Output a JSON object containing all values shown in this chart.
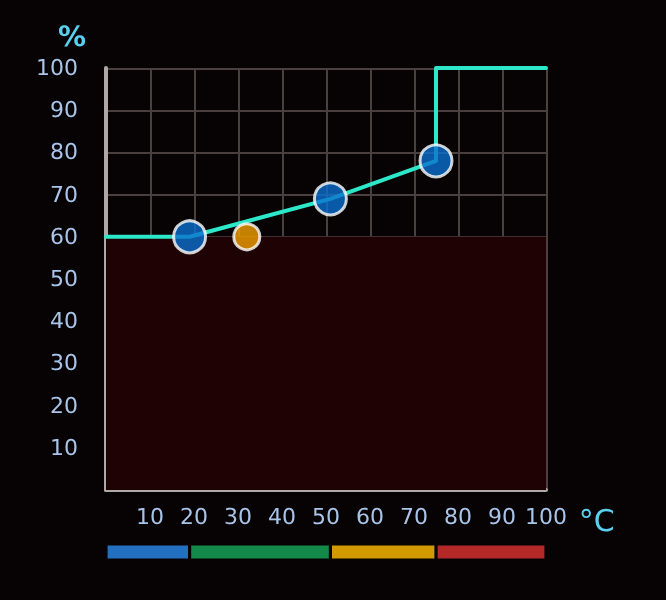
{
  "chart_data": [
    {
      "type": "line",
      "xlabel": "°C",
      "ylabel": "%",
      "series": [
        {
          "color": "#2de8c8",
          "x": [
            0,
            19,
            51,
            75,
            75,
            100
          ],
          "values": [
            60,
            60,
            69,
            78,
            100,
            100
          ],
          "marker": "none"
        },
        {
          "type": "scatter",
          "color": "#0a6fd0",
          "x": [
            19,
            51,
            75
          ],
          "values": [
            60,
            69,
            78
          ],
          "marker": "circle"
        },
        {
          "type": "scatter",
          "color": "#f4a000",
          "x": [
            32
          ],
          "values": [
            60
          ],
          "marker": "circle"
        }
      ],
      "xlim": [
        0,
        100
      ],
      "ylim": [
        0,
        100
      ],
      "xticks": [
        10,
        20,
        30,
        40,
        50,
        60,
        70,
        80,
        90,
        100
      ],
      "yticks": [
        10,
        20,
        30,
        40,
        50,
        60,
        70,
        80,
        90,
        100
      ],
      "grid": true,
      "bands": [
        {
          "axis": "y",
          "from": 0,
          "to": 60,
          "color": "#1e0204"
        }
      ]
    },
    {
      "type": "bar",
      "orientation": "horizontal",
      "stacked": true,
      "categories": [
        null
      ],
      "series": [
        {
          "color": "#2470c0",
          "values": [
            19
          ]
        },
        {
          "color": "#148a4a",
          "values": [
            32
          ]
        },
        {
          "color": "#d29a00",
          "values": [
            24
          ]
        },
        {
          "color": "#b42828",
          "values": [
            25
          ]
        }
      ],
      "xlim": [
        0,
        100
      ],
      "tick_labels": false
    }
  ]
}
